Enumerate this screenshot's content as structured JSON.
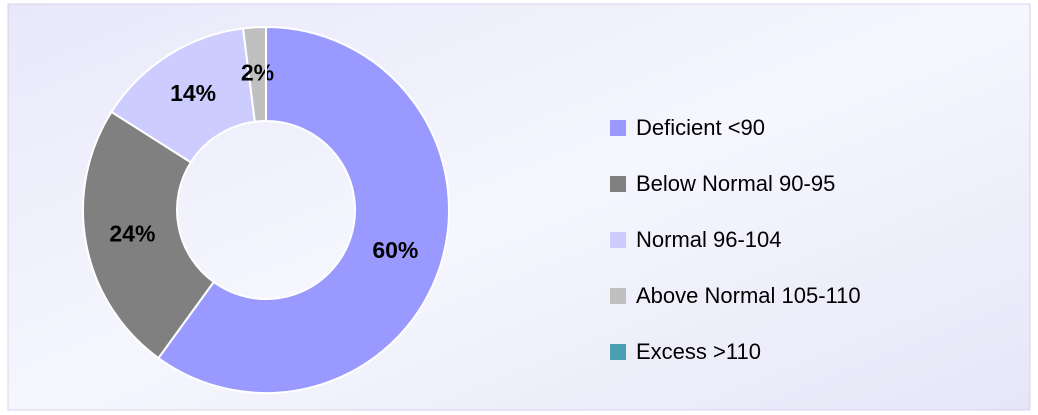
{
  "chart_data": {
    "type": "donut",
    "categories": [
      "Deficient <90",
      "Below Normal 90-95",
      "Normal 96-104",
      "Above Normal 105-110",
      "Excess >110"
    ],
    "values": [
      60,
      24,
      14,
      2,
      0
    ],
    "value_labels": [
      "60%",
      "24%",
      "14%",
      "2%",
      null
    ],
    "colors": [
      "#9999ff",
      "#808080",
      "#ccccff",
      "#c0c0c0",
      "#4a9fb0"
    ],
    "legend": "right"
  }
}
